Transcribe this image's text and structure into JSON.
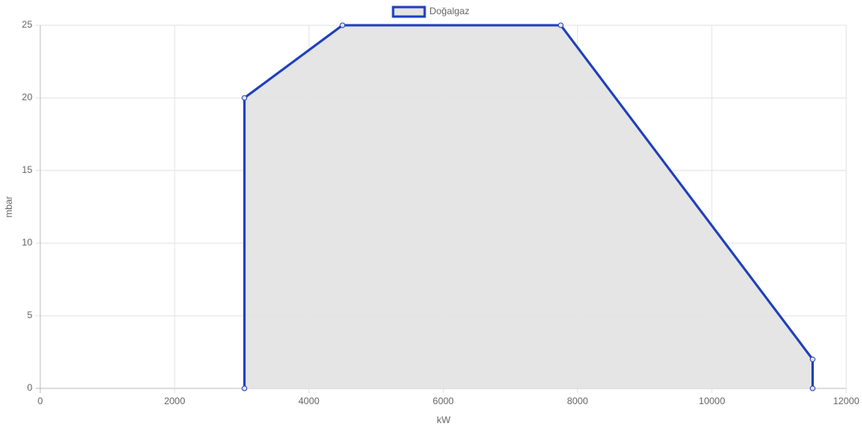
{
  "chart_data": {
    "type": "line",
    "x_label": "kW",
    "y_label": "mbar",
    "x": [
      3040,
      3040,
      4500,
      7750,
      11500,
      11500
    ],
    "series": [
      {
        "name": "Doğalgaz",
        "color": "#1f3fbd",
        "fill_color": "#e4e4e4",
        "values": [
          0,
          20,
          25,
          25,
          2,
          0
        ]
      }
    ],
    "xlim": [
      0,
      12000
    ],
    "xticks": [
      0,
      2000,
      4000,
      6000,
      8000,
      10000,
      12000
    ],
    "ylim": [
      0,
      25
    ],
    "yticks": [
      0,
      5,
      10,
      15,
      20,
      25
    ],
    "grid": true,
    "legend": "top"
  }
}
